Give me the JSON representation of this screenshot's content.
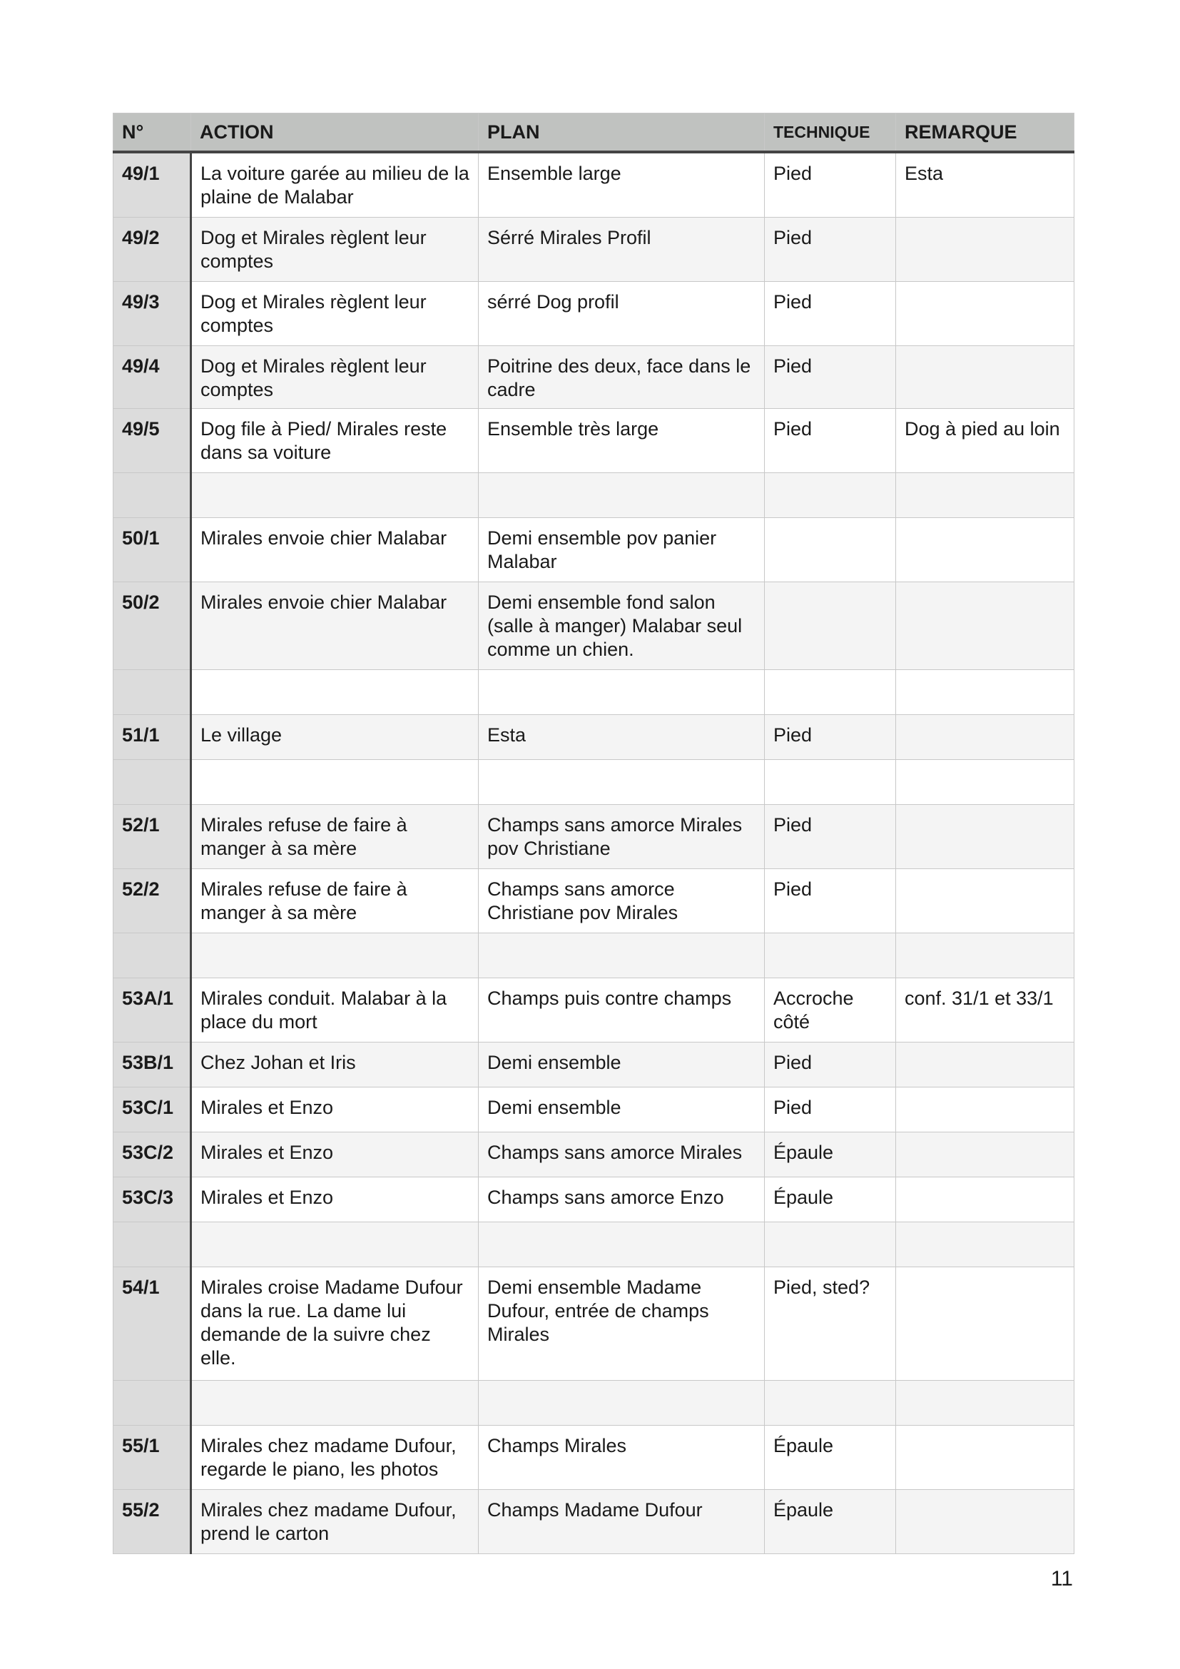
{
  "headers": [
    "N°",
    "ACTION",
    "PLAN",
    "TECHNIQUE",
    "REMARQUE"
  ],
  "rows": [
    {
      "n": "49/1",
      "action": "La voiture garée au milieu de la plaine de Malabar",
      "plan": "Ensemble large",
      "technique": "Pied",
      "remarque": "Esta"
    },
    {
      "n": "49/2",
      "action": "Dog et Mirales règlent leur comptes",
      "plan": "Sérré Mirales Profil",
      "technique": "Pied",
      "remarque": ""
    },
    {
      "n": "49/3",
      "action": "Dog et Mirales règlent leur comptes",
      "plan": "sérré Dog profil",
      "technique": "Pied",
      "remarque": ""
    },
    {
      "n": "49/4",
      "action": "Dog et Mirales règlent leur comptes",
      "plan": "Poitrine des deux, face dans le cadre",
      "technique": "Pied",
      "remarque": ""
    },
    {
      "n": "49/5",
      "action": "Dog file à Pied/ Mirales reste dans sa voiture",
      "plan": "Ensemble très large",
      "technique": "Pied",
      "remarque": "Dog à pied au loin"
    },
    {
      "n": "",
      "action": "",
      "plan": "",
      "technique": "",
      "remarque": ""
    },
    {
      "n": "50/1",
      "action": "Mirales envoie chier Malabar",
      "plan": "Demi ensemble pov panier Malabar",
      "technique": "",
      "remarque": ""
    },
    {
      "n": "50/2",
      "action": "Mirales envoie chier Malabar",
      "plan": "Demi ensemble fond salon (salle à manger) Malabar seul comme un chien.",
      "technique": "",
      "remarque": ""
    },
    {
      "n": "",
      "action": "",
      "plan": "",
      "technique": "",
      "remarque": ""
    },
    {
      "n": "51/1",
      "action": "Le village",
      "plan": "Esta",
      "technique": "Pied",
      "remarque": ""
    },
    {
      "n": "",
      "action": "",
      "plan": "",
      "technique": "",
      "remarque": ""
    },
    {
      "n": "52/1",
      "action": "Mirales refuse de faire à manger à sa mère",
      "plan": "Champs sans amorce Mirales pov Christiane",
      "technique": "Pied",
      "remarque": ""
    },
    {
      "n": "52/2",
      "action": "Mirales refuse de faire à manger à sa mère",
      "plan": "Champs sans amorce Christiane pov Mirales",
      "technique": "Pied",
      "remarque": ""
    },
    {
      "n": "",
      "action": "",
      "plan": "",
      "technique": "",
      "remarque": ""
    },
    {
      "n": "53A/1",
      "action": "Mirales conduit. Malabar à la place du mort",
      "plan": "Champs puis contre champs",
      "technique": "Accroche côté",
      "remarque": " conf. 31/1 et 33/1"
    },
    {
      "n": "53B/1",
      "action": "Chez Johan et Iris",
      "plan": "Demi ensemble",
      "technique": "Pied",
      "remarque": ""
    },
    {
      "n": "53C/1",
      "action": "Mirales et Enzo",
      "plan": "Demi ensemble",
      "technique": "Pied",
      "remarque": ""
    },
    {
      "n": "53C/2",
      "action": "Mirales et Enzo",
      "plan": "Champs sans amorce Mirales",
      "technique": "Épaule",
      "remarque": ""
    },
    {
      "n": "53C/3",
      "action": "Mirales et Enzo",
      "plan": "Champs sans amorce Enzo",
      "technique": "Épaule",
      "remarque": ""
    },
    {
      "n": "",
      "action": "",
      "plan": "",
      "technique": "",
      "remarque": ""
    },
    {
      "n": "54/1",
      "action": "Mirales croise Madame Dufour dans la rue. La dame lui demande de la suivre chez elle.",
      "plan": "Demi ensemble Madame Dufour, entrée de champs Mirales",
      "technique": "Pied, sted?",
      "remarque": ""
    },
    {
      "n": "",
      "action": "",
      "plan": "",
      "technique": "",
      "remarque": ""
    },
    {
      "n": "55/1",
      "action": "Mirales chez madame Dufour, regarde le piano, les photos",
      "plan": "Champs Mirales",
      "technique": "Épaule",
      "remarque": ""
    },
    {
      "n": "55/2",
      "action": "Mirales chez madame Dufour, prend le carton",
      "plan": "Champs Madame Dufour",
      "technique": "Épaule",
      "remarque": ""
    }
  ],
  "page_number": "11"
}
